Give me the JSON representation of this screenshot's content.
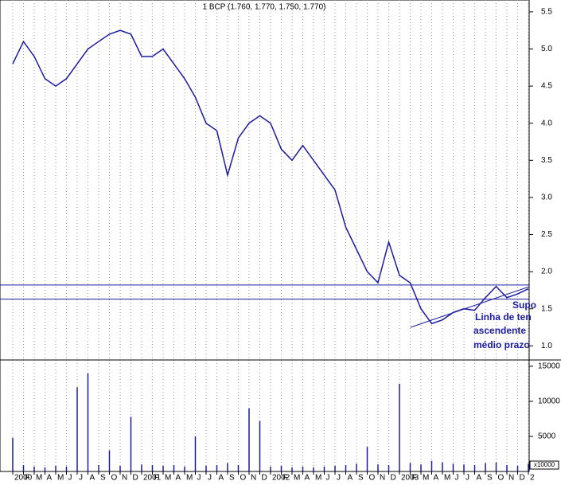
{
  "chart_data": {
    "type": "line",
    "title": "1 BCP (1.760, 1.770, 1.750, 1.770)",
    "categories": [
      "2000",
      "F",
      "M",
      "A",
      "M",
      "J",
      "J",
      "A",
      "S",
      "O",
      "N",
      "D",
      "2001",
      "F",
      "M",
      "A",
      "M",
      "J",
      "J",
      "A",
      "S",
      "O",
      "N",
      "D",
      "2002",
      "F",
      "M",
      "A",
      "M",
      "J",
      "J",
      "A",
      "S",
      "O",
      "N",
      "D",
      "2003",
      "F",
      "M",
      "A",
      "M",
      "J",
      "J",
      "A",
      "S",
      "O",
      "N",
      "D",
      "2"
    ],
    "series": [
      {
        "name": "BCP",
        "color": "#1a1aa0",
        "values": [
          4.8,
          5.1,
          4.9,
          4.6,
          4.5,
          4.6,
          4.8,
          5.0,
          5.1,
          5.2,
          5.25,
          5.2,
          4.9,
          4.9,
          5.0,
          4.8,
          4.6,
          4.35,
          4.0,
          3.9,
          3.3,
          3.8,
          4.0,
          4.1,
          4.0,
          3.65,
          3.5,
          3.7,
          3.5,
          3.3,
          3.1,
          2.6,
          2.3,
          2.0,
          1.85,
          2.4,
          1.95,
          1.85,
          1.5,
          1.3,
          1.35,
          1.45,
          1.5,
          1.48,
          1.65,
          1.8,
          1.65,
          1.7,
          1.77
        ]
      }
    ],
    "ylim": [
      0.81,
      5.66
    ],
    "yticks": [
      {
        "value": 1,
        "label": "1.0"
      },
      1.5,
      {
        "value": 2,
        "label": "2.0"
      },
      2.5,
      {
        "value": 3,
        "label": "3.0"
      },
      3.5,
      {
        "value": 4,
        "label": "4.0"
      },
      4.5,
      {
        "value": 5,
        "label": "5.0"
      },
      5.5
    ],
    "hlines": [
      1.82,
      1.63
    ],
    "annotations": [
      "Linha de ten",
      "ascendente",
      "médio prazo",
      "Supo"
    ],
    "volume": {
      "color": "#1a1aa0",
      "label": "x10000",
      "values": [
        4800,
        900,
        700,
        600,
        800,
        700,
        12000,
        14000,
        900,
        3000,
        800,
        7800,
        1000,
        900,
        800,
        900,
        700,
        5000,
        800,
        900,
        1200,
        900,
        9000,
        7200,
        700,
        800,
        600,
        700,
        600,
        700,
        800,
        900,
        1100,
        3500,
        1000,
        900,
        12500,
        1200,
        1000,
        1500,
        1300,
        1100,
        1000,
        900,
        1200,
        1300,
        900,
        800,
        1100
      ],
      "ylim": [
        0,
        15900
      ],
      "yticks": [
        5000,
        10000,
        15000
      ]
    }
  }
}
